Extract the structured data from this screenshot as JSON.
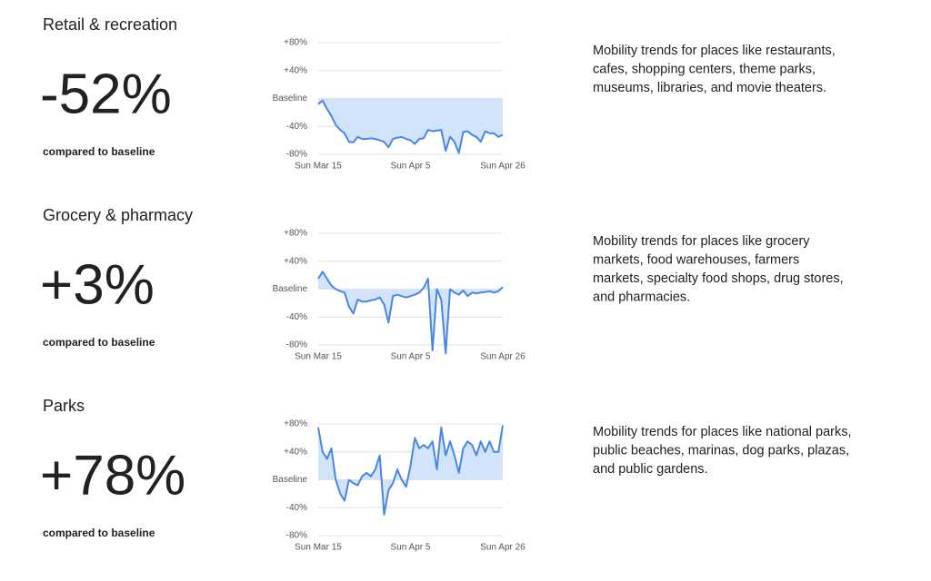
{
  "chart_data": [
    {
      "type": "line",
      "title": "Retail & recreation",
      "headline": "-52%",
      "caption": "compared to baseline",
      "description_lines": [
        "Mobility trends for places like restaurants,",
        "cafes, shopping centers, theme parks,",
        "museums, libraries, and movie theaters."
      ],
      "categories": [
        "Sun Mar 15",
        null,
        null,
        null,
        null,
        null,
        null,
        null,
        null,
        null,
        null,
        null,
        null,
        null,
        null,
        null,
        null,
        null,
        null,
        null,
        null,
        "Sun Apr 5",
        null,
        null,
        null,
        null,
        null,
        null,
        null,
        null,
        null,
        null,
        null,
        null,
        null,
        null,
        null,
        null,
        null,
        null,
        null,
        null,
        "Sun Apr 26"
      ],
      "values": [
        -8,
        -3,
        -15,
        -25,
        -38,
        -45,
        -50,
        -62,
        -63,
        -55,
        -58,
        -58,
        -57,
        -58,
        -60,
        -62,
        -70,
        -58,
        -56,
        -55,
        -58,
        -60,
        -65,
        -58,
        -57,
        -45,
        -47,
        -46,
        -45,
        -75,
        -55,
        -62,
        -78,
        -48,
        -47,
        -52,
        -55,
        -62,
        -47,
        -50,
        -50,
        -55,
        -52
      ],
      "color": "#4a86e8",
      "fill_color": "#d2e3fc",
      "ylim": [
        -80,
        80
      ],
      "yticks": [
        {
          "value": -80,
          "label": "-80%"
        },
        {
          "value": -40,
          "label": "-40%"
        },
        {
          "value": 0,
          "label": "Baseline"
        },
        {
          "value": 40,
          "label": "+40%"
        },
        {
          "value": 80,
          "label": "+80%"
        }
      ],
      "grid": true
    },
    {
      "type": "line",
      "title": "Grocery & pharmacy",
      "headline": "+3%",
      "caption": "compared to baseline",
      "description_lines": [
        "Mobility trends for places like grocery",
        "markets, food warehouses, farmers",
        "markets, specialty food shops, drug stores,",
        "and pharmacies."
      ],
      "categories": [
        "Sun Mar 15",
        null,
        null,
        null,
        null,
        null,
        null,
        null,
        null,
        null,
        null,
        null,
        null,
        null,
        null,
        null,
        null,
        null,
        null,
        null,
        null,
        "Sun Apr 5",
        null,
        null,
        null,
        null,
        null,
        null,
        null,
        null,
        null,
        null,
        null,
        null,
        null,
        null,
        null,
        null,
        null,
        null,
        null,
        null,
        "Sun Apr 26"
      ],
      "values": [
        15,
        25,
        15,
        5,
        0,
        -3,
        -5,
        -25,
        -35,
        -15,
        -18,
        -18,
        -16,
        -15,
        -12,
        -22,
        -48,
        -10,
        -8,
        -10,
        -12,
        -10,
        -8,
        -5,
        2,
        15,
        -88,
        0,
        -15,
        -92,
        0,
        -5,
        -8,
        -2,
        -10,
        -5,
        -6,
        -5,
        -4,
        -3,
        -5,
        -3,
        3
      ],
      "color": "#4a86e8",
      "fill_color": "#d2e3fc",
      "ylim": [
        -80,
        80
      ],
      "yticks": [
        {
          "value": -80,
          "label": "-80%"
        },
        {
          "value": -40,
          "label": "-40%"
        },
        {
          "value": 0,
          "label": "Baseline"
        },
        {
          "value": 40,
          "label": "+40%"
        },
        {
          "value": 80,
          "label": "+80%"
        }
      ],
      "grid": true
    },
    {
      "type": "line",
      "title": "Parks",
      "headline": "+78%",
      "caption": "compared to baseline",
      "description_lines": [
        "Mobility trends for places like national parks,",
        "public beaches, marinas, dog parks, plazas,",
        "and public gardens."
      ],
      "categories": [
        "Sun Mar 15",
        null,
        null,
        null,
        null,
        null,
        null,
        null,
        null,
        null,
        null,
        null,
        null,
        null,
        null,
        null,
        null,
        null,
        null,
        null,
        null,
        "Sun Apr 5",
        null,
        null,
        null,
        null,
        null,
        null,
        null,
        null,
        null,
        null,
        null,
        null,
        null,
        null,
        null,
        null,
        null,
        null,
        null,
        null,
        "Sun Apr 26"
      ],
      "values": [
        75,
        40,
        30,
        45,
        0,
        -20,
        -30,
        0,
        -5,
        -8,
        5,
        10,
        5,
        15,
        35,
        -50,
        -15,
        -5,
        15,
        0,
        -10,
        20,
        60,
        45,
        50,
        45,
        55,
        15,
        75,
        35,
        55,
        35,
        10,
        45,
        55,
        50,
        35,
        55,
        40,
        55,
        40,
        40,
        78
      ],
      "color": "#4a86e8",
      "fill_color": "#d2e3fc",
      "ylim": [
        -80,
        80
      ],
      "yticks": [
        {
          "value": -80,
          "label": "-80%"
        },
        {
          "value": -40,
          "label": "-40%"
        },
        {
          "value": 0,
          "label": "Baseline"
        },
        {
          "value": 40,
          "label": "+40%"
        },
        {
          "value": 80,
          "label": "+80%"
        }
      ],
      "grid": true
    }
  ]
}
